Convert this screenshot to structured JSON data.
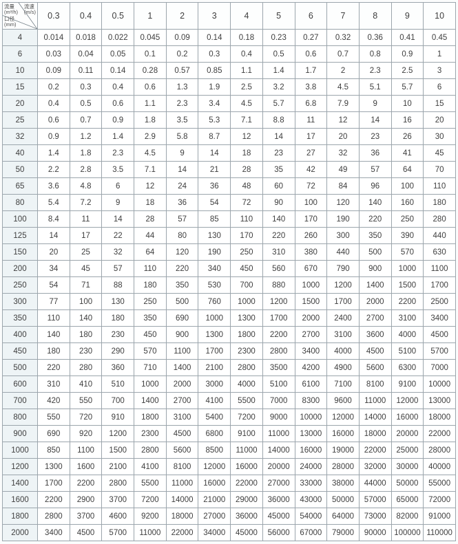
{
  "chart_data": {
    "type": "table",
    "corner": {
      "flow_label": "流量",
      "flow_unit": "(m³/h)",
      "velocity_label": "流速",
      "velocity_unit": "(m/s)",
      "diameter_label": "口径",
      "diameter_unit": "(mm)"
    },
    "column_header_meaning": "流速 (m/s)",
    "row_header_meaning": "口径 (mm)",
    "cell_value_meaning": "流量 (m³/h)",
    "columns": [
      "0.3",
      "0.4",
      "0.5",
      "1",
      "2",
      "3",
      "4",
      "5",
      "6",
      "7",
      "8",
      "9",
      "10"
    ],
    "rows": [
      {
        "diameter": "4",
        "values": [
          "0.014",
          "0.018",
          "0.022",
          "0.045",
          "0.09",
          "0.14",
          "0.18",
          "0.23",
          "0.27",
          "0.32",
          "0.36",
          "0.41",
          "0.45"
        ]
      },
      {
        "diameter": "6",
        "values": [
          "0.03",
          "0.04",
          "0.05",
          "0.1",
          "0.2",
          "0.3",
          "0.4",
          "0.5",
          "0.6",
          "0.7",
          "0.8",
          "0.9",
          "1"
        ]
      },
      {
        "diameter": "10",
        "values": [
          "0.09",
          "0.11",
          "0.14",
          "0.28",
          "0.57",
          "0.85",
          "1.1",
          "1.4",
          "1.7",
          "2",
          "2.3",
          "2.5",
          "3"
        ]
      },
      {
        "diameter": "15",
        "values": [
          "0.2",
          "0.3",
          "0.4",
          "0.6",
          "1.3",
          "1.9",
          "2.5",
          "3.2",
          "3.8",
          "4.5",
          "5.1",
          "5.7",
          "6"
        ]
      },
      {
        "diameter": "20",
        "values": [
          "0.4",
          "0.5",
          "0.6",
          "1.1",
          "2.3",
          "3.4",
          "4.5",
          "5.7",
          "6.8",
          "7.9",
          "9",
          "10",
          "15"
        ]
      },
      {
        "diameter": "25",
        "values": [
          "0.6",
          "0.7",
          "0.9",
          "1.8",
          "3.5",
          "5.3",
          "7.1",
          "8.8",
          "11",
          "12",
          "14",
          "16",
          "20"
        ]
      },
      {
        "diameter": "32",
        "values": [
          "0.9",
          "1.2",
          "1.4",
          "2.9",
          "5.8",
          "8.7",
          "12",
          "14",
          "17",
          "20",
          "23",
          "26",
          "30"
        ]
      },
      {
        "diameter": "40",
        "values": [
          "1.4",
          "1.8",
          "2.3",
          "4.5",
          "9",
          "14",
          "18",
          "23",
          "27",
          "32",
          "36",
          "41",
          "45"
        ]
      },
      {
        "diameter": "50",
        "values": [
          "2.2",
          "2.8",
          "3.5",
          "7.1",
          "14",
          "21",
          "28",
          "35",
          "42",
          "49",
          "57",
          "64",
          "70"
        ]
      },
      {
        "diameter": "65",
        "values": [
          "3.6",
          "4.8",
          "6",
          "12",
          "24",
          "36",
          "48",
          "60",
          "72",
          "84",
          "96",
          "100",
          "110"
        ]
      },
      {
        "diameter": "80",
        "values": [
          "5.4",
          "7.2",
          "9",
          "18",
          "36",
          "54",
          "72",
          "90",
          "100",
          "120",
          "140",
          "160",
          "180"
        ]
      },
      {
        "diameter": "100",
        "values": [
          "8.4",
          "11",
          "14",
          "28",
          "57",
          "85",
          "110",
          "140",
          "170",
          "190",
          "220",
          "250",
          "280"
        ]
      },
      {
        "diameter": "125",
        "values": [
          "14",
          "17",
          "22",
          "44",
          "80",
          "130",
          "170",
          "220",
          "260",
          "300",
          "350",
          "390",
          "440"
        ]
      },
      {
        "diameter": "150",
        "values": [
          "20",
          "25",
          "32",
          "64",
          "120",
          "190",
          "250",
          "310",
          "380",
          "440",
          "500",
          "570",
          "630"
        ]
      },
      {
        "diameter": "200",
        "values": [
          "34",
          "45",
          "57",
          "110",
          "220",
          "340",
          "450",
          "560",
          "670",
          "790",
          "900",
          "1000",
          "1100"
        ]
      },
      {
        "diameter": "250",
        "values": [
          "54",
          "71",
          "88",
          "180",
          "350",
          "530",
          "700",
          "880",
          "1000",
          "1200",
          "1400",
          "1500",
          "1700"
        ]
      },
      {
        "diameter": "300",
        "values": [
          "77",
          "100",
          "130",
          "250",
          "500",
          "760",
          "1000",
          "1200",
          "1500",
          "1700",
          "2000",
          "2200",
          "2500"
        ]
      },
      {
        "diameter": "350",
        "values": [
          "110",
          "140",
          "180",
          "350",
          "690",
          "1000",
          "1300",
          "1700",
          "2000",
          "2400",
          "2700",
          "3100",
          "3400"
        ]
      },
      {
        "diameter": "400",
        "values": [
          "140",
          "180",
          "230",
          "450",
          "900",
          "1300",
          "1800",
          "2200",
          "2700",
          "3100",
          "3600",
          "4000",
          "4500"
        ]
      },
      {
        "diameter": "450",
        "values": [
          "180",
          "230",
          "290",
          "570",
          "1100",
          "1700",
          "2300",
          "2800",
          "3400",
          "4000",
          "4500",
          "5100",
          "5700"
        ]
      },
      {
        "diameter": "500",
        "values": [
          "220",
          "280",
          "360",
          "710",
          "1400",
          "2100",
          "2800",
          "3500",
          "4200",
          "4900",
          "5600",
          "6300",
          "7000"
        ]
      },
      {
        "diameter": "600",
        "values": [
          "310",
          "410",
          "510",
          "1000",
          "2000",
          "3000",
          "4000",
          "5100",
          "6100",
          "7100",
          "8100",
          "9100",
          "10000"
        ]
      },
      {
        "diameter": "700",
        "values": [
          "420",
          "550",
          "700",
          "1400",
          "2700",
          "4100",
          "5500",
          "7000",
          "8300",
          "9600",
          "11000",
          "12000",
          "13000"
        ]
      },
      {
        "diameter": "800",
        "values": [
          "550",
          "720",
          "910",
          "1800",
          "3100",
          "5400",
          "7200",
          "9000",
          "10000",
          "12000",
          "14000",
          "16000",
          "18000"
        ]
      },
      {
        "diameter": "900",
        "values": [
          "690",
          "920",
          "1200",
          "2300",
          "4500",
          "6800",
          "9100",
          "11000",
          "13000",
          "16000",
          "18000",
          "20000",
          "22000"
        ]
      },
      {
        "diameter": "1000",
        "values": [
          "850",
          "1100",
          "1500",
          "2800",
          "5600",
          "8500",
          "11000",
          "14000",
          "16000",
          "19000",
          "22000",
          "25000",
          "28000"
        ]
      },
      {
        "diameter": "1200",
        "values": [
          "1300",
          "1600",
          "2100",
          "4100",
          "8100",
          "12000",
          "16000",
          "20000",
          "24000",
          "28000",
          "32000",
          "30000",
          "40000"
        ]
      },
      {
        "diameter": "1400",
        "values": [
          "1700",
          "2200",
          "2800",
          "5500",
          "11000",
          "16000",
          "22000",
          "27000",
          "33000",
          "38000",
          "44000",
          "50000",
          "55000"
        ]
      },
      {
        "diameter": "1600",
        "values": [
          "2200",
          "2900",
          "3700",
          "7200",
          "14000",
          "21000",
          "29000",
          "36000",
          "43000",
          "50000",
          "57000",
          "65000",
          "72000"
        ]
      },
      {
        "diameter": "1800",
        "values": [
          "2800",
          "3700",
          "4600",
          "9200",
          "18000",
          "27000",
          "36000",
          "45000",
          "54000",
          "64000",
          "73000",
          "82000",
          "91000"
        ]
      },
      {
        "diameter": "2000",
        "values": [
          "3400",
          "4500",
          "5700",
          "11000",
          "22000",
          "34000",
          "45000",
          "56000",
          "67000",
          "79000",
          "90000",
          "100000",
          "110000"
        ]
      }
    ]
  },
  "colors": {
    "border": "#9ba5ac",
    "outer_border": "#86909a",
    "row_header_bg": "#eef4f6",
    "text": "#3e3e3e"
  }
}
